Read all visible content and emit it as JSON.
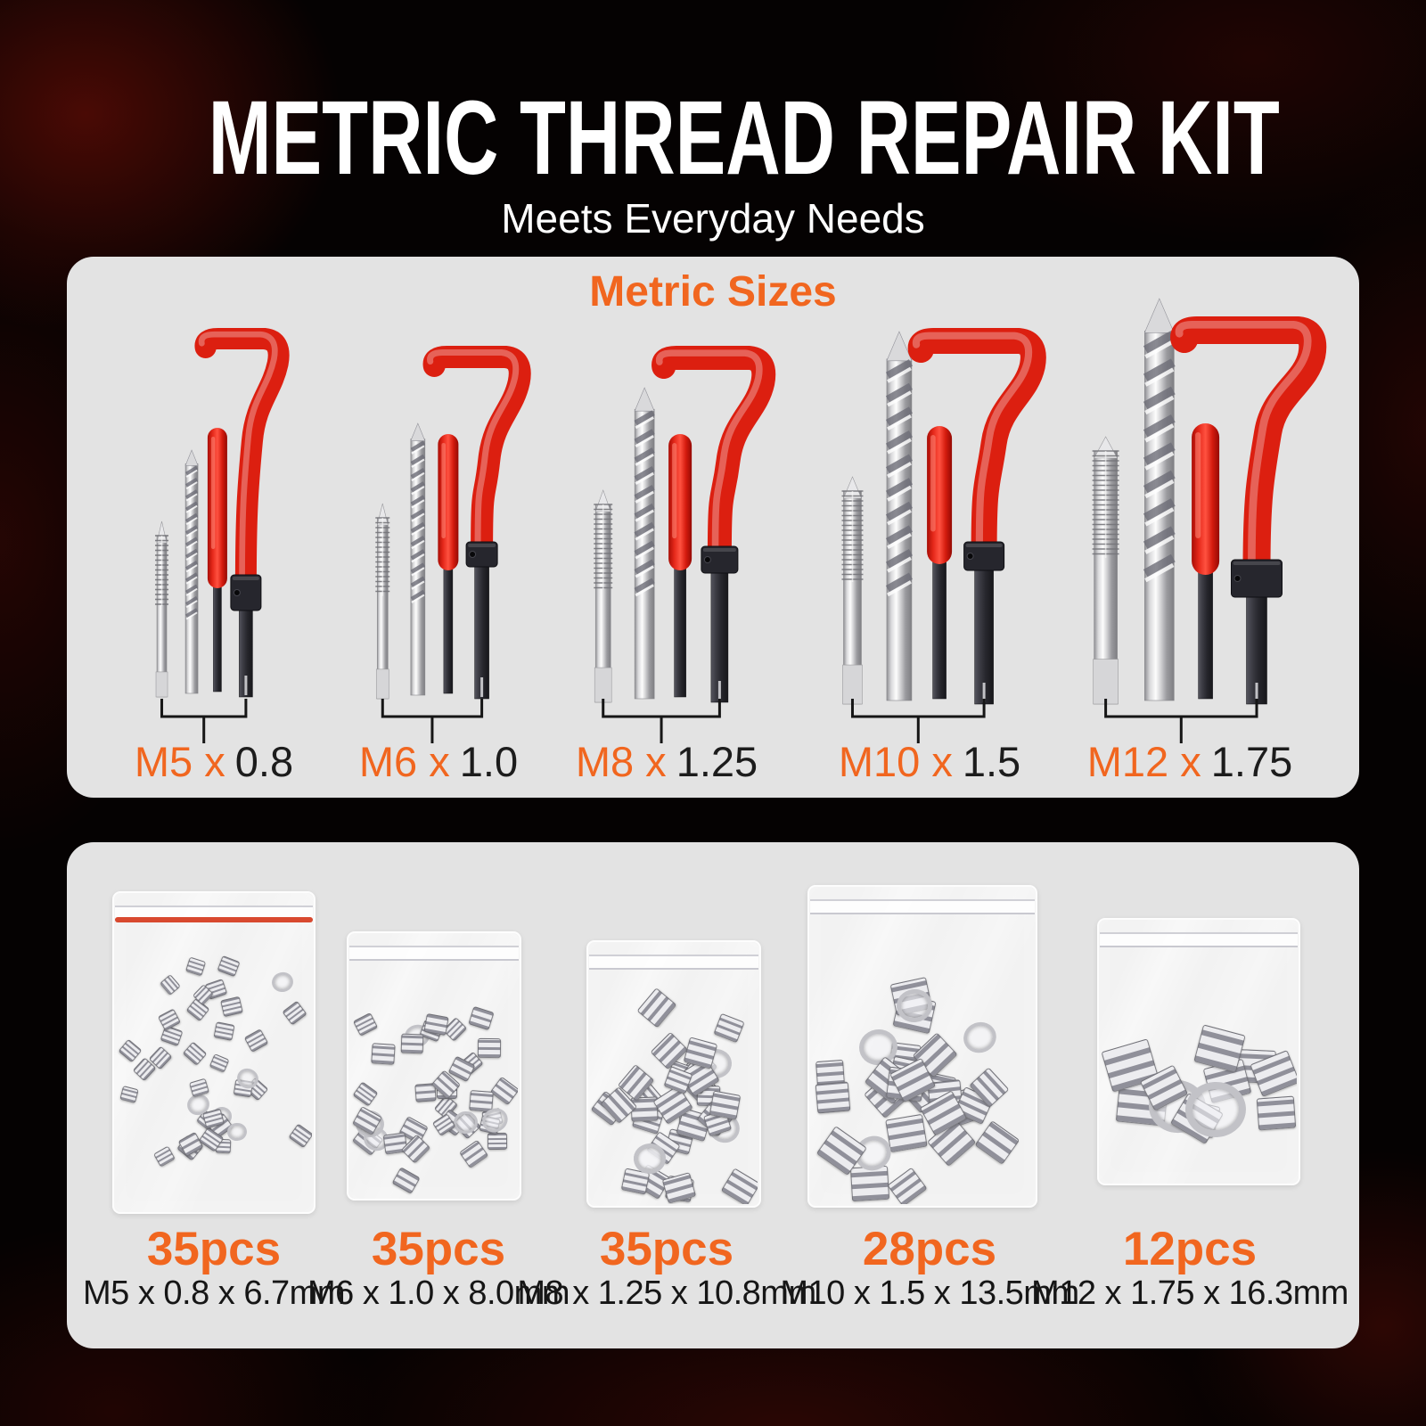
{
  "title": "METRIC THREAD REPAIR KIT",
  "subtitle": "Meets Everyday Needs",
  "colors": {
    "accent_orange": "#F1661F",
    "handle_red": "#DC1F10",
    "panel_gray": "#E3E3E3",
    "background_black": "#050202",
    "smoke_red": "#5A0B06",
    "text_dark": "#1C1C1C",
    "text_white": "#FFFFFF",
    "bag_seal_red": "#D8492F"
  },
  "top_panel": {
    "heading": "Metric Sizes",
    "sizes": [
      {
        "label_orange": "M5 x",
        "label_black": "0.8"
      },
      {
        "label_orange": "M6 x",
        "label_black": "1.0"
      },
      {
        "label_orange": "M8 x",
        "label_black": "1.25"
      },
      {
        "label_orange": "M10 x",
        "label_black": "1.5"
      },
      {
        "label_orange": "M12 x",
        "label_black": "1.75"
      }
    ]
  },
  "bottom_panel": {
    "bags": [
      {
        "count": "35pcs",
        "spec": "M5 x 0.8 x 6.7mm"
      },
      {
        "count": "35pcs",
        "spec": "M6 x 1.0 x 8.0mm"
      },
      {
        "count": "35pcs",
        "spec": "M8 x 1.25 x 10.8mm"
      },
      {
        "count": "28pcs",
        "spec": "M10 x 1.5 x 13.5mm"
      },
      {
        "count": "12pcs",
        "spec": "M12 x 1.75 x 16.3mm"
      }
    ]
  }
}
